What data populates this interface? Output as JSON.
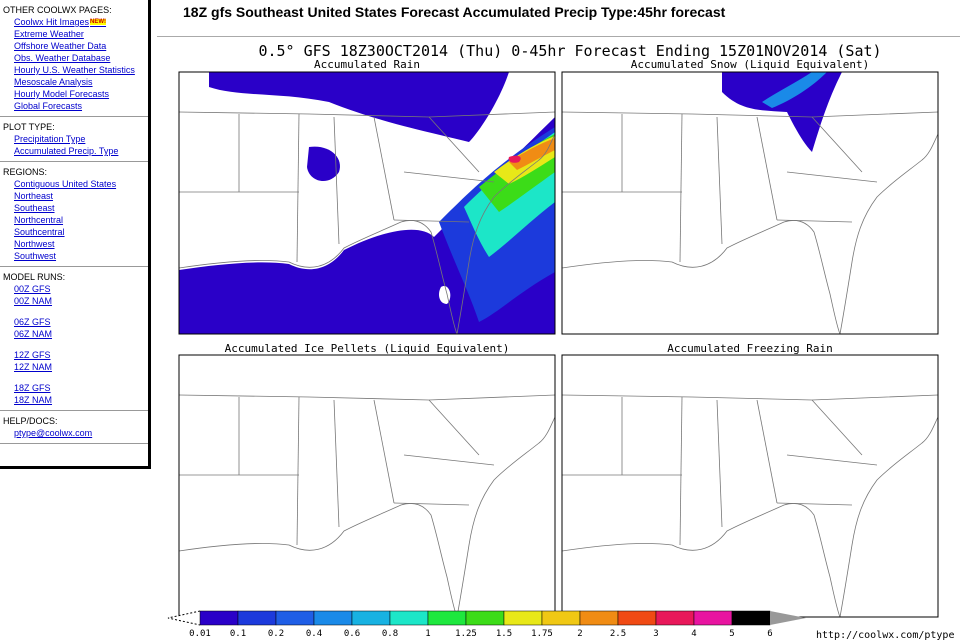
{
  "sidebar": {
    "sections": [
      {
        "heading": "OTHER COOLWX PAGES:",
        "groups": [
          [
            {
              "text": "Coolwx Hit Images",
              "badge": "NEW!"
            },
            {
              "text": "Extreme Weather"
            },
            {
              "text": "Offshore Weather Data"
            },
            {
              "text": "Obs. Weather Database"
            },
            {
              "text": "Hourly U.S. Weather Statistics"
            },
            {
              "text": "Mesoscale Analysis"
            },
            {
              "text": "Hourly Model Forecasts"
            },
            {
              "text": "Global Forecasts"
            }
          ]
        ]
      },
      {
        "heading": "PLOT TYPE:",
        "groups": [
          [
            {
              "text": "Precipitation Type"
            },
            {
              "text": "Accumulated Precip. Type"
            }
          ]
        ]
      },
      {
        "heading": "REGIONS:",
        "groups": [
          [
            {
              "text": "Contiguous United States"
            },
            {
              "text": "Northeast"
            },
            {
              "text": "Southeast"
            },
            {
              "text": "Northcentral"
            },
            {
              "text": "Southcentral"
            },
            {
              "text": "Northwest"
            },
            {
              "text": "Southwest"
            }
          ]
        ]
      },
      {
        "heading": "MODEL RUNS:",
        "groups": [
          [
            {
              "text": "00Z GFS"
            },
            {
              "text": "00Z NAM"
            }
          ],
          [
            {
              "text": "06Z GFS"
            },
            {
              "text": "06Z NAM"
            }
          ],
          [
            {
              "text": "12Z GFS"
            },
            {
              "text": "12Z NAM"
            }
          ],
          [
            {
              "text": "18Z GFS"
            },
            {
              "text": "18Z NAM"
            }
          ]
        ]
      },
      {
        "heading": "HELP/DOCS:",
        "groups": [
          [
            {
              "text": "ptype@coolwx.com"
            }
          ]
        ]
      }
    ]
  },
  "header": {
    "title": "18Z gfs Southeast United States Forecast Accumulated Precip Type:45hr forecast",
    "subtitle": "0.5° GFS 18Z30OCT2014 (Thu) 0-45hr Forecast Ending 15Z01NOV2014 (Sat)"
  },
  "panels": [
    {
      "title": "Accumulated Rain"
    },
    {
      "title": "Accumulated Snow (Liquid Equivalent)"
    },
    {
      "title": "Accumulated Ice Pellets (Liquid Equivalent)"
    },
    {
      "title": "Accumulated Freezing Rain"
    }
  ],
  "colorbar": {
    "labels": [
      "0.01",
      "0.1",
      "0.2",
      "0.4",
      "0.6",
      "0.8",
      "1",
      "1.25",
      "1.5",
      "1.75",
      "2",
      "2.5",
      "3",
      "4",
      "5",
      "6"
    ],
    "colors": [
      "#2a00c8",
      "#1c3adc",
      "#1f5ee6",
      "#1a8ae8",
      "#18b2e2",
      "#1ce6c8",
      "#1ee83e",
      "#3cdc18",
      "#e8e818",
      "#f0c814",
      "#f08c14",
      "#f04a14",
      "#e8185a",
      "#e814a0",
      "#000000"
    ]
  },
  "footer": {
    "url": "http://coolwx.com/ptype"
  }
}
